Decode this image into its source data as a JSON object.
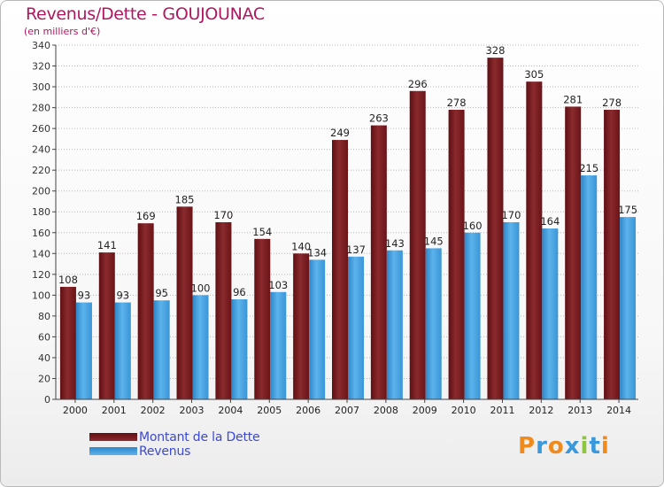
{
  "title": "Revenus/Dette - GOUJOUNAC",
  "subtitle": "(en milliers d'€)",
  "colors": {
    "dette": "#7a1d21",
    "revenus": "#3a98dc",
    "grid": "#b8b8b8",
    "title": "#b0175f",
    "legend_text": "#3b48d8"
  },
  "legend": {
    "dette_label": "Montant de la Dette",
    "revenus_label": "Revenus"
  },
  "logo": {
    "text": "Proxiti"
  },
  "chart_data": {
    "type": "bar",
    "title": "Revenus/Dette - GOUJOUNAC",
    "ylabel": "(en milliers d'€)",
    "ylim": [
      0,
      340
    ],
    "ytick_step": 20,
    "grid": true,
    "legend_position": "bottom-left",
    "categories": [
      "2000",
      "2001",
      "2002",
      "2003",
      "2004",
      "2005",
      "2006",
      "2007",
      "2008",
      "2009",
      "2010",
      "2011",
      "2012",
      "2013",
      "2014"
    ],
    "series": [
      {
        "name": "Montant de la Dette",
        "values": [
          108,
          141,
          169,
          185,
          170,
          154,
          140,
          249,
          263,
          296,
          278,
          328,
          305,
          281,
          278
        ]
      },
      {
        "name": "Revenus",
        "values": [
          93,
          93,
          95,
          100,
          96,
          103,
          134,
          137,
          143,
          145,
          160,
          170,
          164,
          215,
          175
        ]
      }
    ]
  }
}
